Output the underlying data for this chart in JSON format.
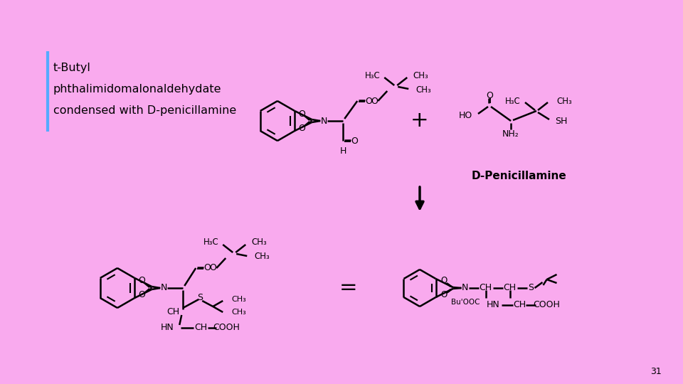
{
  "background_color": "#F9AAEE",
  "text_color": "#000000",
  "cyan_bar_color": "#55AAFF",
  "title_lines": [
    "t-Butyl",
    "phthalimidomalonaldehydate",
    "condensed with D-penicillamine"
  ],
  "label_dpen": "D-Penicillamine",
  "label_31": "31",
  "font_size_title": 11.5,
  "font_size_struct": 9,
  "font_size_label": 11
}
